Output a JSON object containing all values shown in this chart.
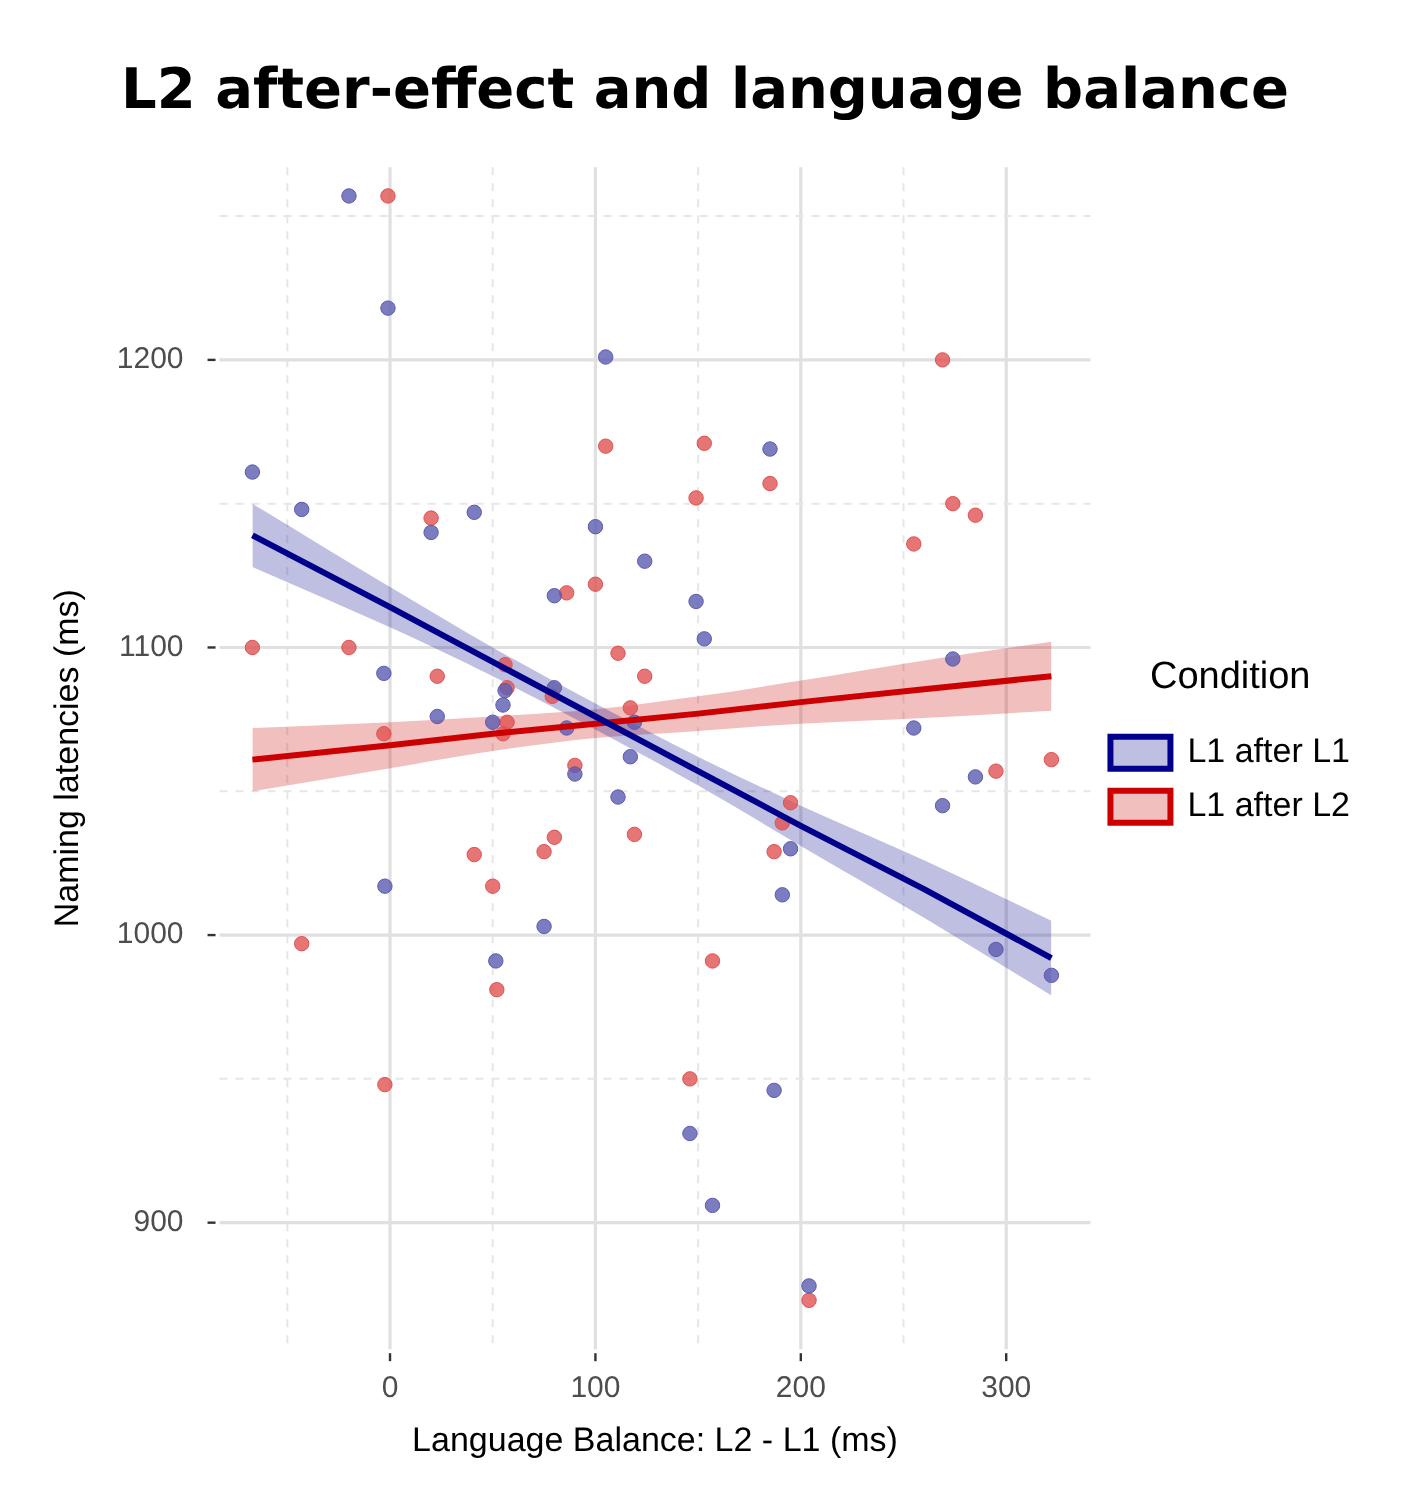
{
  "chart_data": {
    "type": "scatter",
    "title": "L2 after-effect and language balance",
    "xlabel": "Language Balance: L2 - L1 (ms)",
    "ylabel": "Naming latencies (ms)",
    "legend_title": "Condition",
    "legend": "right",
    "grid": true,
    "xlim": [
      -83,
      341
    ],
    "ylim": [
      856,
      1267
    ],
    "xticks": [
      {
        "value": -50,
        "label": null
      },
      0,
      {
        "value": 50,
        "label": null
      },
      100,
      {
        "value": 150,
        "label": null
      },
      200,
      {
        "value": 250,
        "label": null
      },
      300
    ],
    "yticks": [
      900,
      {
        "value": 950,
        "label": null
      },
      1000,
      {
        "value": 1050,
        "label": null
      },
      1100,
      {
        "value": 1150,
        "label": null
      },
      1200,
      {
        "value": 1250,
        "label": null
      }
    ],
    "series": [
      {
        "type": "scatter",
        "marker": "circle",
        "color": "#5b5bb0",
        "x": [
          -20,
          -1,
          105,
          -67,
          -43,
          41,
          20,
          100,
          124,
          80,
          -3,
          56,
          55,
          80,
          23,
          50,
          86,
          119,
          117,
          90,
          111,
          -2.5,
          75,
          51.5,
          185,
          149,
          153,
          274,
          255,
          285,
          269,
          195,
          191,
          295,
          322,
          187,
          146,
          157,
          204
        ],
        "values": [
          1257,
          1218,
          1201,
          1161,
          1148,
          1147,
          1140,
          1142,
          1130,
          1118,
          1091,
          1085,
          1080,
          1086,
          1076,
          1074,
          1072,
          1074,
          1062,
          1056,
          1048,
          1017,
          1003,
          991,
          1169,
          1116,
          1103,
          1096,
          1072,
          1055,
          1045,
          1030,
          1014,
          995,
          986,
          946,
          931,
          906,
          878
        ]
      },
      {
        "type": "scatter",
        "marker": "circle",
        "color": "#e05252",
        "x": [
          -1,
          105,
          20,
          86,
          100,
          -67,
          -20,
          23,
          111,
          124,
          56,
          57,
          79,
          -3,
          57,
          55,
          117,
          90,
          119,
          80,
          75,
          41,
          50,
          -43,
          52,
          -2.5,
          153,
          149,
          185,
          269,
          274,
          285,
          255,
          322,
          295,
          195,
          191,
          187,
          157,
          146,
          204
        ],
        "values": [
          1257,
          1170,
          1145,
          1119,
          1122,
          1100,
          1100,
          1090,
          1098,
          1090,
          1094,
          1086,
          1083,
          1070,
          1074,
          1070,
          1079,
          1059,
          1035,
          1034,
          1029,
          1028,
          1017,
          997,
          981,
          948,
          1171,
          1152,
          1157,
          1200,
          1150,
          1146,
          1136,
          1061,
          1057,
          1046,
          1039,
          1029,
          991,
          950,
          873
        ]
      },
      {
        "type": "line",
        "name": "L1 after L1",
        "marker": "none",
        "color": "#00008b",
        "x": [
          -67,
          0,
          50,
          100,
          150,
          200,
          260,
          322
        ],
        "values": [
          1139,
          1114,
          1095,
          1076,
          1057,
          1038,
          1016,
          992
        ],
        "lower": [
          1128,
          1107,
          1090,
          1071.5,
          1052,
          1031,
          1006,
          979
        ],
        "upper": [
          1150,
          1121,
          1100,
          1080.5,
          1062,
          1045,
          1026,
          1005
        ]
      },
      {
        "type": "line",
        "name": "L1 after L2",
        "marker": "none",
        "color": "#cc0000",
        "x": [
          -67,
          0,
          50,
          100,
          150,
          200,
          260,
          322
        ],
        "values": [
          1061,
          1066,
          1070,
          1073.5,
          1077,
          1081,
          1085.5,
          1090
        ],
        "lower": [
          1050,
          1058,
          1064,
          1068.5,
          1071,
          1073.5,
          1075.5,
          1078
        ],
        "upper": [
          1072,
          1074,
          1076,
          1078.5,
          1083,
          1088.5,
          1095.5,
          1102
        ]
      }
    ]
  }
}
